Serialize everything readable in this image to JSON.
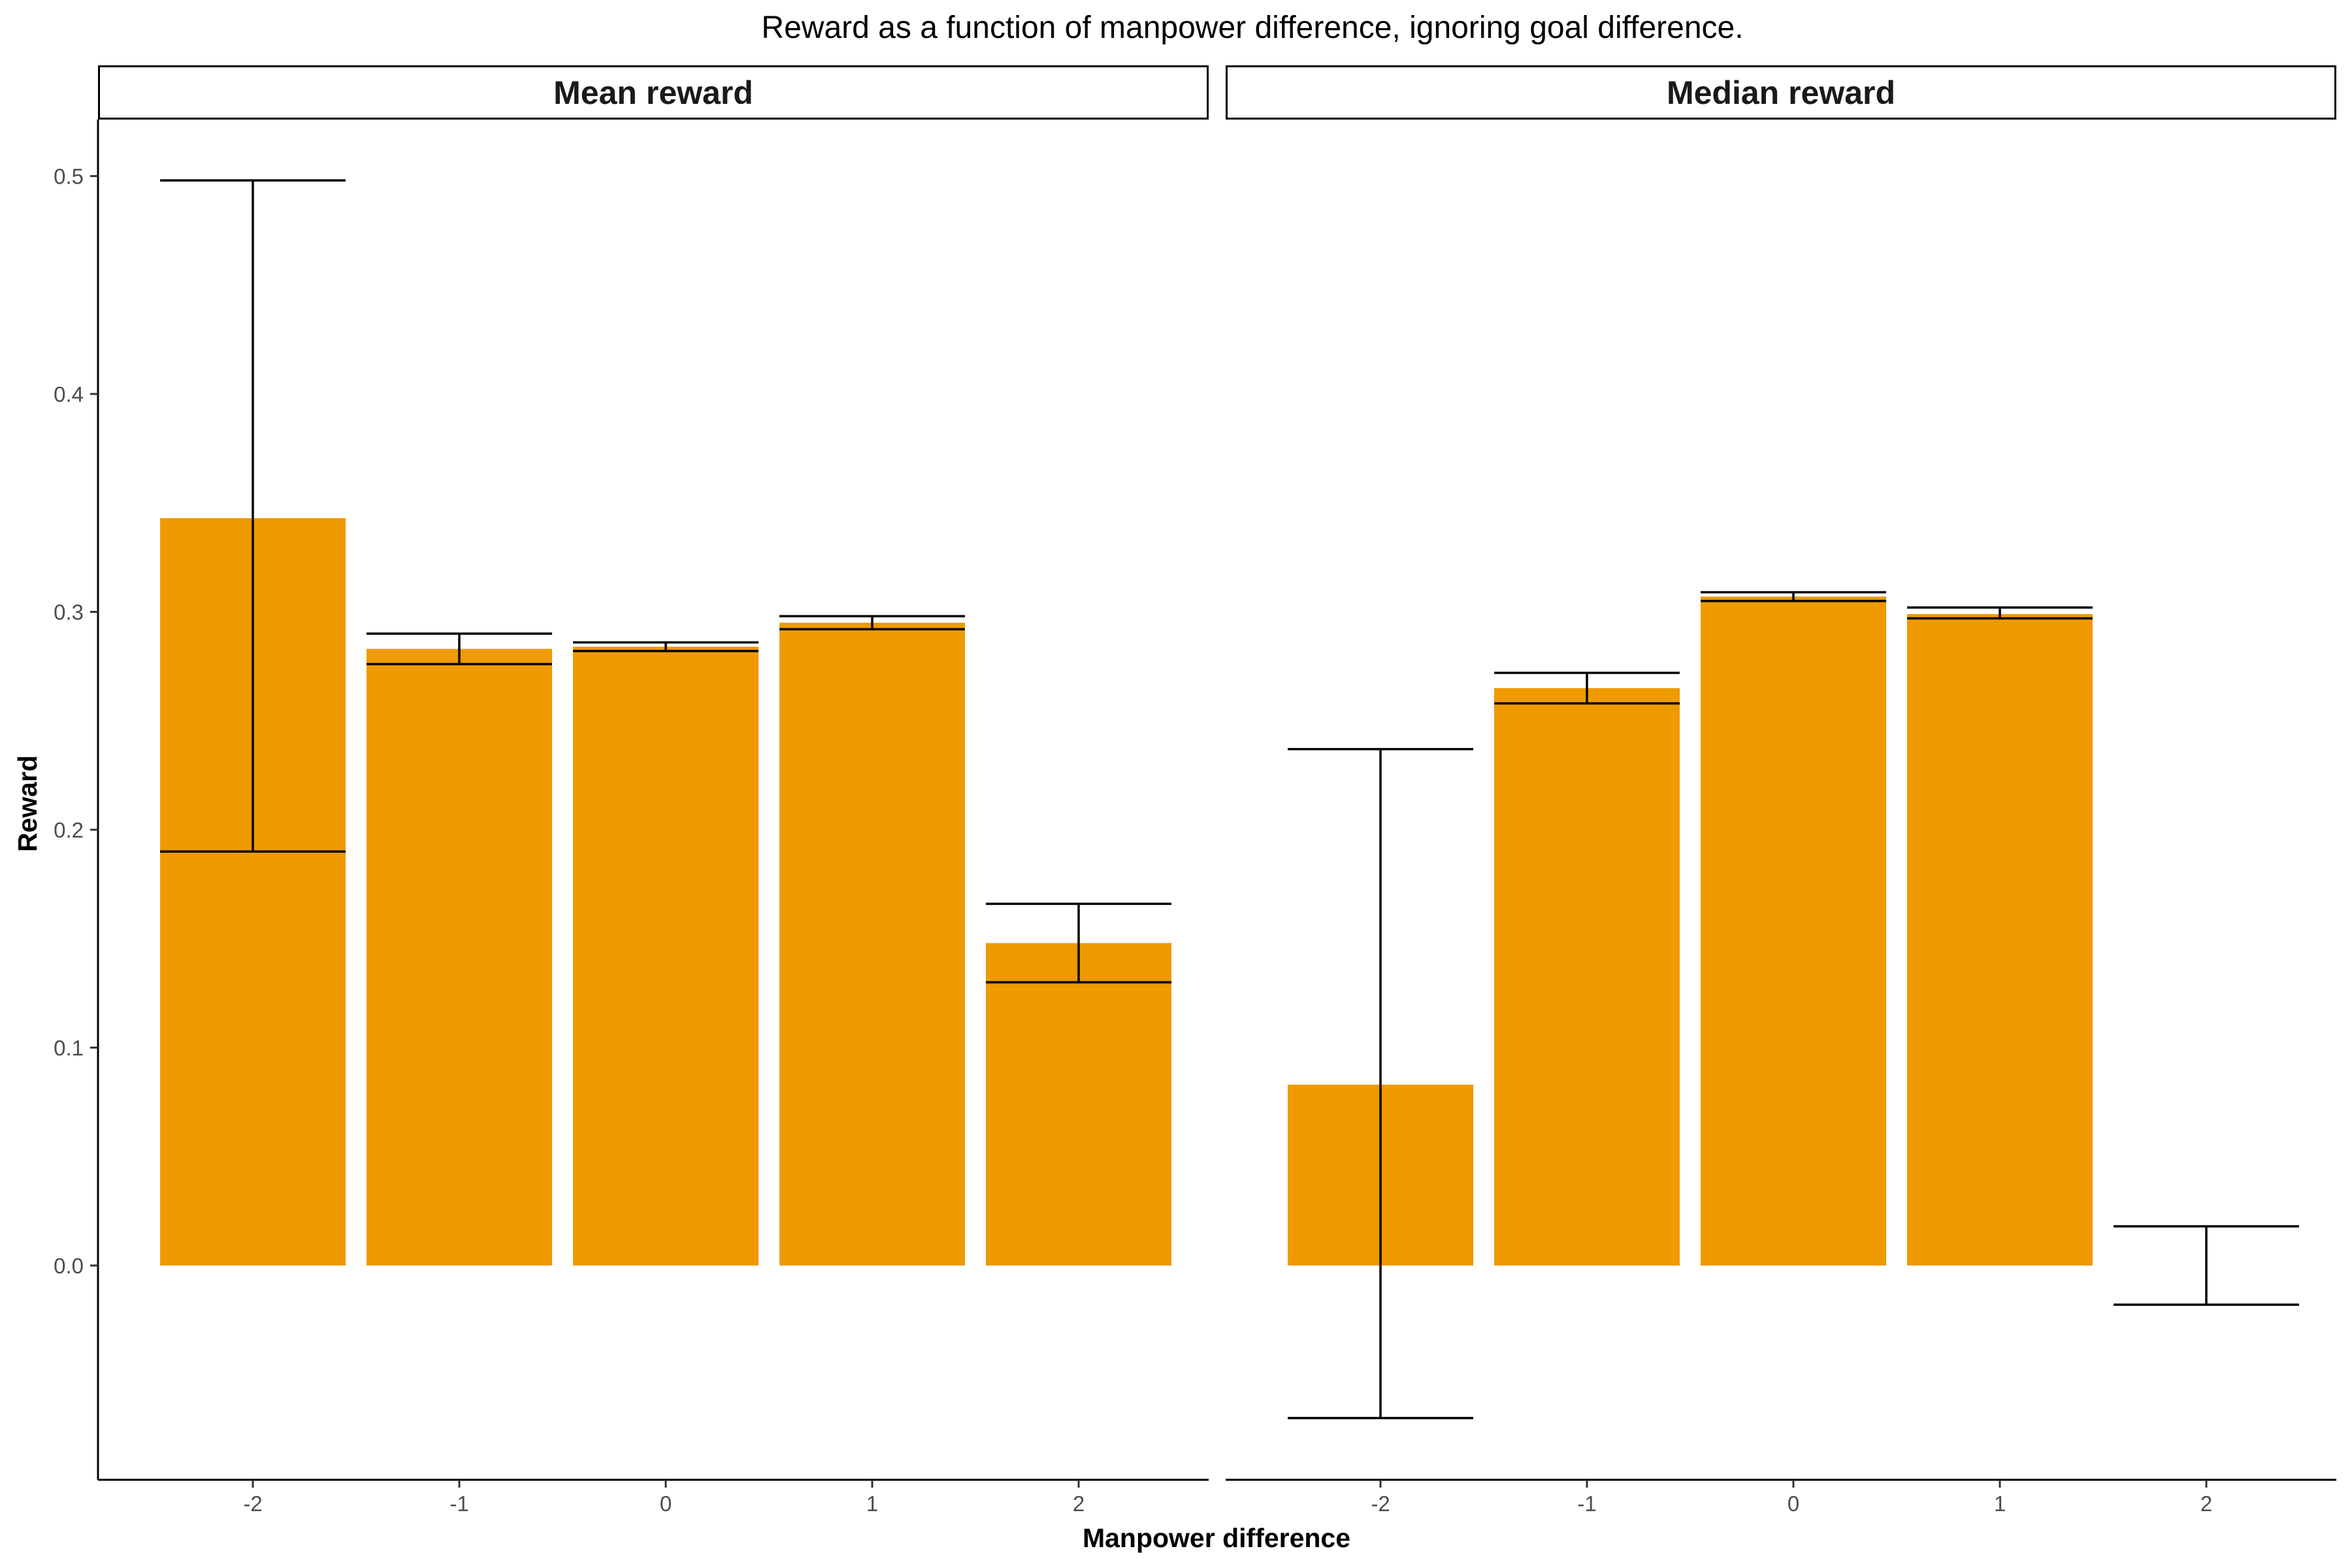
{
  "chart_data": {
    "type": "bar",
    "title": "Reward as a function of manpower difference, ignoring goal difference.",
    "xlabel": "Manpower difference",
    "ylabel": "Reward",
    "ylim": [
      -0.098,
      0.525
    ],
    "y_ticks": [
      "0.0",
      "0.1",
      "0.2",
      "0.3",
      "0.4",
      "0.5"
    ],
    "categories": [
      "-2",
      "-1",
      "0",
      "1",
      "2"
    ],
    "bar_color": "#EE9A00",
    "error_bar_color": "#000000",
    "grid": false,
    "panels": [
      {
        "name": "Mean reward",
        "values": [
          0.343,
          0.283,
          0.284,
          0.295,
          0.148
        ],
        "error_low": [
          0.19,
          0.276,
          0.282,
          0.292,
          0.13
        ],
        "error_high": [
          0.498,
          0.29,
          0.286,
          0.298,
          0.166
        ]
      },
      {
        "name": "Median reward",
        "values": [
          0.083,
          0.265,
          0.307,
          0.299,
          0.0
        ],
        "error_low": [
          -0.07,
          0.258,
          0.305,
          0.297,
          -0.018
        ],
        "error_high": [
          0.237,
          0.272,
          0.309,
          0.302,
          0.018
        ]
      }
    ]
  }
}
